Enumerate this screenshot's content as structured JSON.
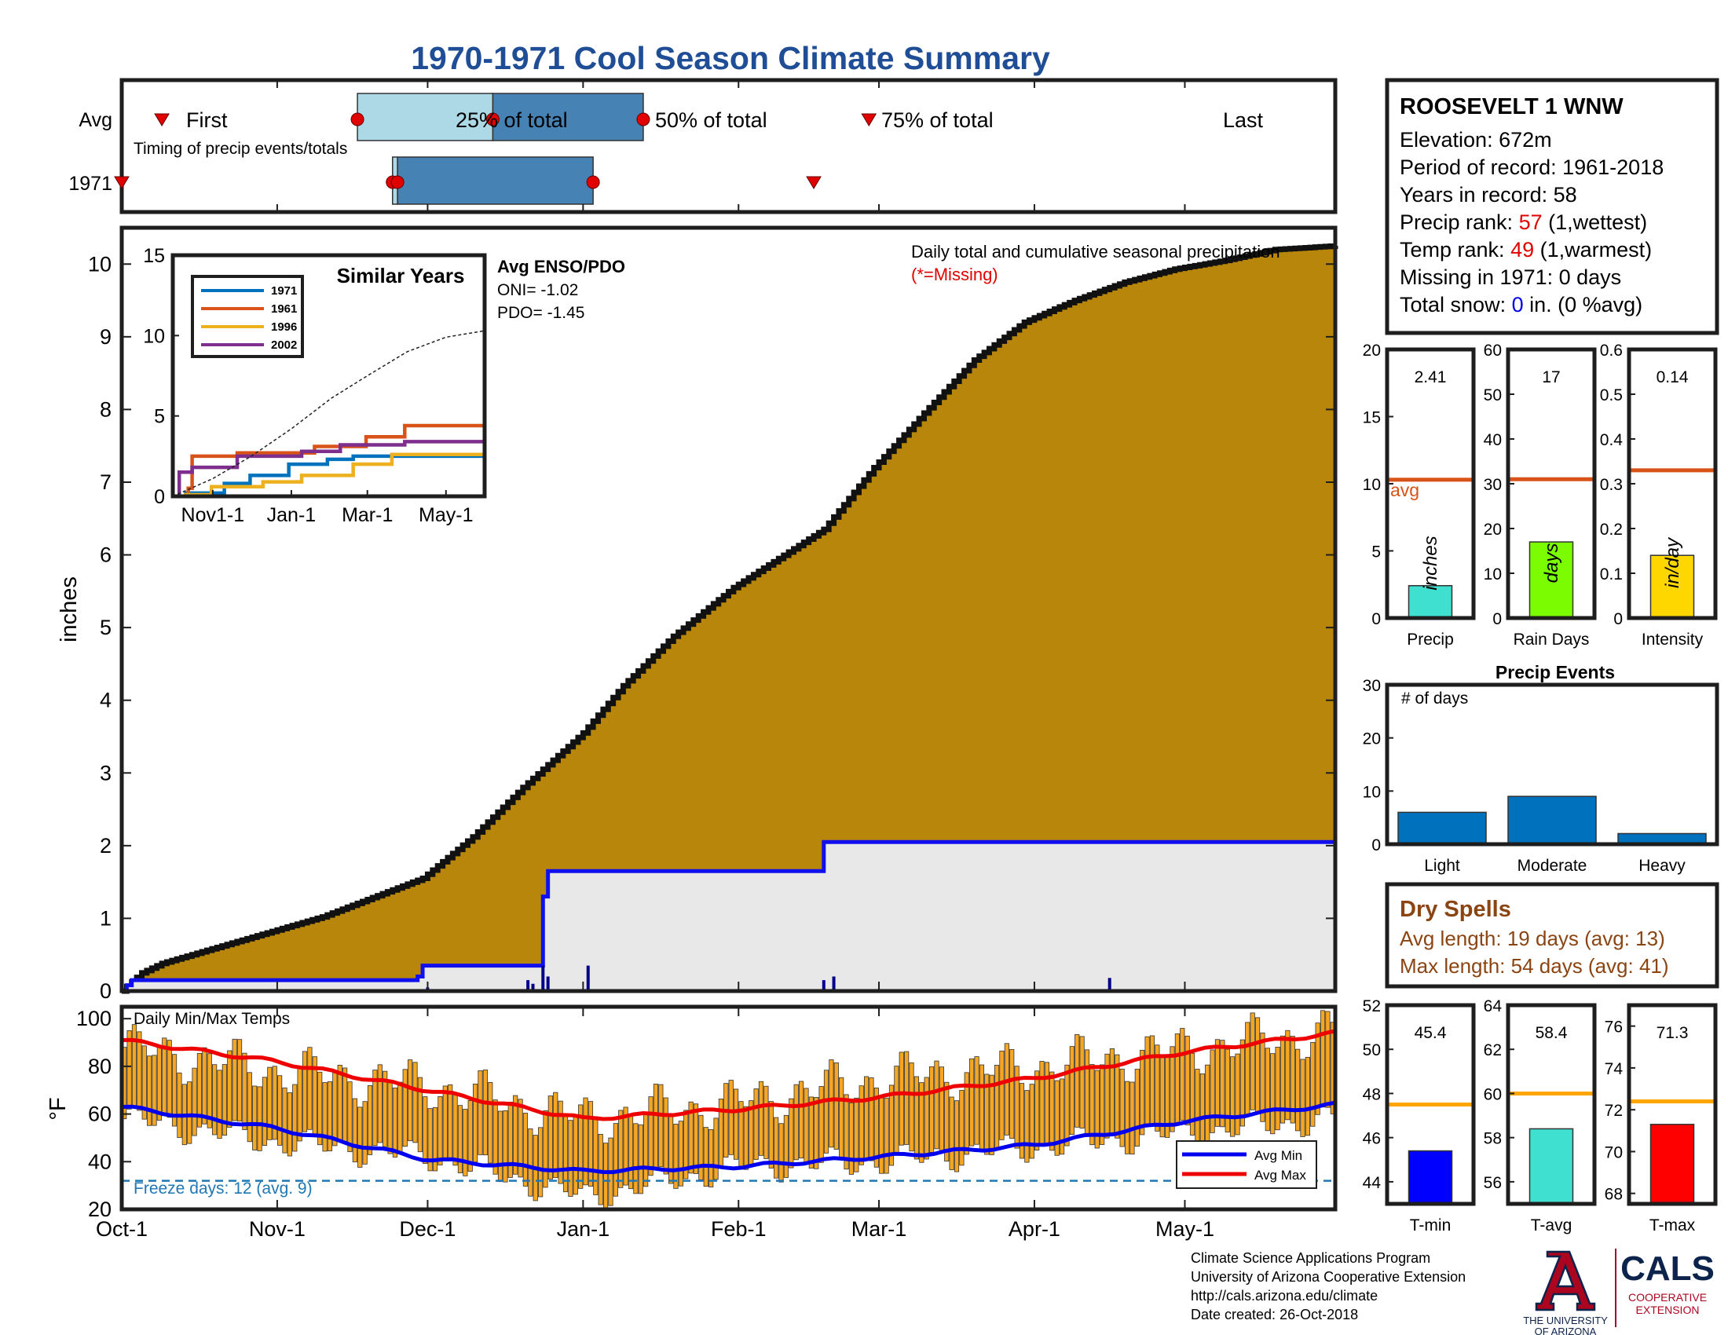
{
  "title": "1970-1971 Cool Season Climate Summary",
  "colors": {
    "title": "#1f4e96",
    "cumulative_fill": "#b8860b",
    "avg_cumulative_fill": "#e8e8e8",
    "avg_line": "#1010ee",
    "box_light": "#add8e6",
    "box_dark": "#4682b4",
    "marker": "#e00000",
    "temp_bar": "#f5a623",
    "avg_min": "#0000ee",
    "avg_max": "#ee0000",
    "freeze": "#1f77b4",
    "bar_precip": "#40e0d0",
    "bar_days": "#7cfc00",
    "bar_intensity": "#ffd700",
    "avg_bar_line": "#d95319",
    "event_bar": "#0072bd",
    "dry_spell_text": "#8b4513",
    "tmin_bar": "#0000ff",
    "tavg_bar": "#40e0d0",
    "tmax_bar": "#ff0000",
    "temp_avg_line": "#ffa500",
    "logo_red": "#ab0520",
    "logo_navy": "#0c234b"
  },
  "timing": {
    "row_avg_label": "Avg",
    "row_year_label": "1971",
    "subtitle": "Timing of precip events/totals",
    "first_label": "First",
    "last_label": "Last",
    "p25_label": "25% of total",
    "p50_label": "50% of total",
    "p75_label": "75% of total"
  },
  "station": {
    "name": "ROOSEVELT 1 WNW",
    "elevation": "Elevation: 672m",
    "period": "Period of record: 1961-2018",
    "years": "Years in record: 58",
    "precip_rank_prefix": "Precip rank: ",
    "precip_rank_value": "57",
    "precip_rank_suffix": " (1,wettest)",
    "temp_rank_prefix": "Temp rank: ",
    "temp_rank_value": "49",
    "temp_rank_suffix": " (1,warmest)",
    "missing": "Missing in 1971: 0 days",
    "snow_prefix": "Total snow: ",
    "snow_value": "0",
    "snow_suffix": " in. (0 %avg)"
  },
  "main_plot": {
    "ylabel": "inches",
    "annotation": "Daily total and cumulative seasonal precipitation",
    "missing_note": "(*=Missing)"
  },
  "enso": {
    "title": "Avg ENSO/PDO",
    "oni": "ONI= -1.02",
    "pdo": "PDO= -1.45"
  },
  "similar_years": {
    "title": "Similar Years",
    "series": [
      {
        "name": "1971",
        "color": "#0072bd"
      },
      {
        "name": "1961",
        "color": "#d95319"
      },
      {
        "name": "1996",
        "color": "#edb120"
      },
      {
        "name": "2002",
        "color": "#7e2f8e"
      }
    ]
  },
  "temps_plot": {
    "label": "Daily Min/Max Temps",
    "ylabel": "°F",
    "freeze_note": "Freeze days: 12 (avg. 9)",
    "legend_min": "Avg Min",
    "legend_max": "Avg Max"
  },
  "dry_spells": {
    "title": "Dry Spells",
    "avg": "Avg length: 19 days (avg: 13)",
    "max": "Max length: 54 days (avg: 41)"
  },
  "precip_events": {
    "title": "Precip Events",
    "subtitle": "# of days"
  },
  "footer": {
    "line1": "Climate Science Applications Program",
    "line2": "University of Arizona Cooperative Extension",
    "line3": "http://cals.arizona.edu/climate",
    "line4": " Date created: 26-Oct-2018",
    "ua_line1": "THE UNIVERSITY",
    "ua_line2": "OF ARIZONA",
    "cals": "CALS",
    "cals_sub1": "COOPERATIVE",
    "cals_sub2": "EXTENSION"
  },
  "chart_data": [
    {
      "id": "timing",
      "type": "box",
      "x_axis": "day of season (0 = Oct-1)",
      "avg": {
        "first": 8,
        "p25": 47,
        "p50": 74,
        "p75": 104,
        "last": 149
      },
      "year_1971": {
        "first": 0,
        "p25": 54,
        "p50": 55,
        "p75": 94,
        "last": 138
      }
    },
    {
      "id": "main_precip",
      "type": "area",
      "title": "Daily total and cumulative seasonal precipitation",
      "xlabel": "",
      "ylabel": "inches",
      "x_ticks": [
        "Oct-1",
        "Nov-1",
        "Dec-1",
        "Jan-1",
        "Feb-1",
        "Mar-1",
        "Apr-1",
        "May-1"
      ],
      "x_tick_days": [
        0,
        31,
        61,
        92,
        123,
        151,
        182,
        212
      ],
      "xlim": [
        0,
        242
      ],
      "ylim": [
        0,
        10.5
      ],
      "y_ticks": [
        0,
        1,
        2,
        3,
        4,
        5,
        6,
        7,
        8,
        9,
        10
      ],
      "series": [
        {
          "name": "avg_cumulative",
          "x": [
            0,
            4,
            8,
            20,
            40,
            60,
            70,
            80,
            92,
            100,
            110,
            122,
            140,
            150,
            160,
            170,
            180,
            190,
            200,
            210,
            220,
            230,
            242
          ],
          "y": [
            0,
            0.25,
            0.38,
            0.62,
            1.02,
            1.55,
            2.12,
            2.8,
            3.55,
            4.2,
            4.88,
            5.55,
            6.35,
            7.2,
            7.95,
            8.68,
            9.2,
            9.5,
            9.75,
            9.93,
            10.05,
            10.2,
            10.25
          ]
        },
        {
          "name": "1971_cumulative",
          "x": [
            0,
            1,
            2,
            56,
            59,
            60,
            62,
            84,
            85,
            139,
            140,
            146,
            242
          ],
          "y": [
            0,
            0.08,
            0.15,
            0.15,
            0.2,
            0.35,
            0.35,
            1.3,
            1.65,
            1.65,
            2.05,
            2.05,
            2.41
          ]
        },
        {
          "name": "1971_daily",
          "x": [
            61,
            81,
            82,
            84,
            85,
            93,
            140,
            142,
            197
          ],
          "y": [
            0.05,
            0.15,
            0.1,
            0.35,
            0.2,
            0.35,
            0.15,
            0.2,
            0.18
          ]
        }
      ]
    },
    {
      "id": "similar_years",
      "type": "line",
      "title": "Similar Years",
      "x_ticks": [
        "Nov1-1",
        "Jan-1",
        "Mar-1",
        "May-1"
      ],
      "x_tick_days": [
        31,
        92,
        151,
        212
      ],
      "xlim": [
        0,
        242
      ],
      "ylim": [
        0,
        15
      ],
      "y_ticks": [
        0,
        5,
        10,
        15
      ],
      "series": [
        {
          "name": "1971",
          "x": [
            0,
            10,
            40,
            60,
            90,
            120,
            140,
            242
          ],
          "y": [
            0,
            0.2,
            0.8,
            1.3,
            2.0,
            2.3,
            2.5,
            2.5
          ]
        },
        {
          "name": "1961",
          "x": [
            0,
            12,
            15,
            50,
            110,
            150,
            180,
            242
          ],
          "y": [
            0,
            0.5,
            2.5,
            2.7,
            3.1,
            3.7,
            4.4,
            4.4
          ]
        },
        {
          "name": "1996",
          "x": [
            0,
            10,
            30,
            70,
            100,
            140,
            170,
            242
          ],
          "y": [
            0,
            0.1,
            0.6,
            0.9,
            1.3,
            2.0,
            2.6,
            2.8
          ]
        },
        {
          "name": "2002",
          "x": [
            0,
            5,
            15,
            50,
            100,
            130,
            180,
            242
          ],
          "y": [
            0,
            1.5,
            1.8,
            2.5,
            2.8,
            3.2,
            3.4,
            3.5
          ]
        },
        {
          "name": "avg",
          "x": [
            0,
            31,
            61,
            92,
            123,
            151,
            182,
            212,
            242
          ],
          "y": [
            0,
            1.1,
            2.5,
            4.2,
            6.1,
            7.5,
            9.0,
            9.9,
            10.3
          ]
        }
      ]
    },
    {
      "id": "daily_temps",
      "type": "bar",
      "title": "Daily Min/Max Temps",
      "ylabel": "°F",
      "xlim": [
        0,
        242
      ],
      "ylim": [
        20,
        105
      ],
      "y_ticks": [
        20,
        40,
        60,
        80,
        100
      ],
      "freeze_line": 32,
      "series": [
        {
          "name": "Avg Max",
          "x": [
            0,
            31,
            61,
            92,
            123,
            151,
            182,
            212,
            242
          ],
          "y": [
            91,
            82,
            70,
            58,
            62,
            67,
            75,
            86,
            94
          ]
        },
        {
          "name": "Avg Min",
          "x": [
            0,
            31,
            61,
            92,
            123,
            151,
            182,
            212,
            242
          ],
          "y": [
            63,
            54,
            41,
            36,
            38,
            42,
            47,
            57,
            64
          ]
        },
        {
          "name": "daily_max",
          "x": [
            0,
            31,
            61,
            92,
            123,
            151,
            182,
            212,
            242
          ],
          "y": [
            88,
            78,
            72,
            58,
            65,
            75,
            80,
            87,
            95
          ]
        },
        {
          "name": "daily_min",
          "x": [
            0,
            31,
            61,
            92,
            123,
            151,
            182,
            212,
            242
          ],
          "y": [
            58,
            48,
            42,
            25,
            38,
            40,
            46,
            52,
            58
          ]
        }
      ]
    },
    {
      "id": "precip_summary",
      "type": "bar",
      "subplots": [
        {
          "category": "Precip",
          "unit": "inches",
          "value": 2.41,
          "avg": 10.3,
          "ylim": [
            0,
            20
          ],
          "y_ticks": [
            0,
            5,
            10,
            15,
            20
          ],
          "label": "2.41"
        },
        {
          "category": "Rain Days",
          "unit": "days",
          "value": 17,
          "avg": 31,
          "ylim": [
            0,
            60
          ],
          "y_ticks": [
            0,
            10,
            20,
            30,
            40,
            50,
            60
          ],
          "label": "17"
        },
        {
          "category": "Intensity",
          "unit": "in/day",
          "value": 0.14,
          "avg": 0.33,
          "ylim": [
            0,
            0.6
          ],
          "y_ticks": [
            0,
            0.1,
            0.2,
            0.3,
            0.4,
            0.5,
            0.6
          ],
          "label": "0.14"
        }
      ],
      "avg_label": "avg"
    },
    {
      "id": "precip_events",
      "type": "bar",
      "title": "Precip Events",
      "ylabel": "# of days",
      "categories": [
        "Light",
        "Moderate",
        "Heavy"
      ],
      "values": [
        6,
        9,
        2
      ],
      "ylim": [
        0,
        30
      ],
      "y_ticks": [
        0,
        10,
        20,
        30
      ]
    },
    {
      "id": "temp_summary",
      "type": "bar",
      "subplots": [
        {
          "category": "T-min",
          "value": 45.4,
          "avg": 47.5,
          "ylim": [
            43,
            52
          ],
          "y_ticks": [
            44,
            46,
            48,
            50,
            52
          ],
          "label": "45.4"
        },
        {
          "category": "T-avg",
          "value": 58.4,
          "avg": 60,
          "ylim": [
            55,
            64
          ],
          "y_ticks": [
            56,
            58,
            60,
            62,
            64
          ],
          "label": "58.4"
        },
        {
          "category": "T-max",
          "value": 71.3,
          "avg": 72.4,
          "ylim": [
            67.5,
            77
          ],
          "y_ticks": [
            68,
            70,
            72,
            74,
            76
          ],
          "label": "71.3"
        }
      ]
    }
  ]
}
